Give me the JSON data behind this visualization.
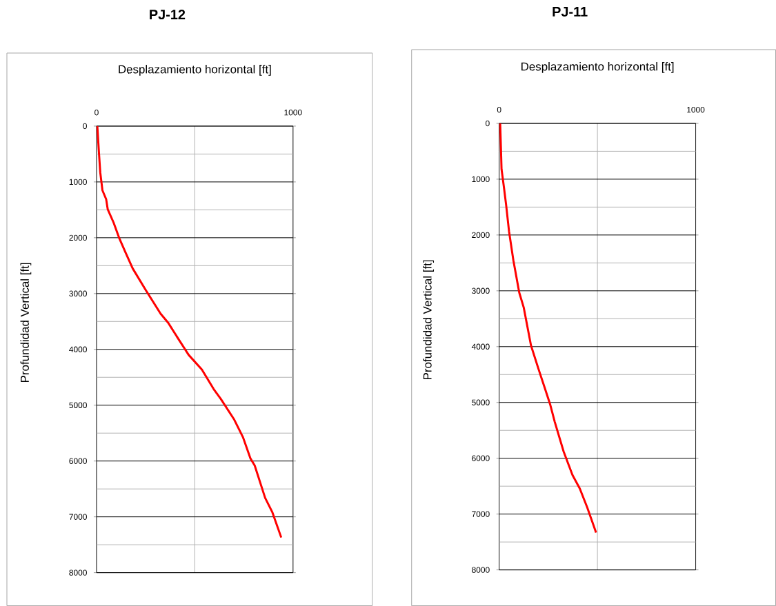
{
  "chart_data": [
    {
      "type": "line",
      "title": "PJ-12",
      "xlabel": "Desplazamiento horizontal  [ft]",
      "ylabel": "Profundidad Vertical [ft]",
      "x": [
        4,
        12,
        19,
        30,
        49,
        57,
        87,
        117,
        147,
        184,
        251,
        326,
        364,
        416,
        469,
        536,
        596,
        633,
        701,
        746,
        783,
        805,
        858,
        895,
        940
      ],
      "values": [
        0,
        460,
        830,
        1150,
        1310,
        1490,
        1730,
        2020,
        2260,
        2550,
        2940,
        3360,
        3520,
        3810,
        4100,
        4360,
        4710,
        4890,
        5260,
        5580,
        5950,
        6080,
        6660,
        6920,
        7370
      ],
      "color": "#ff0000",
      "line_style": "solid",
      "xlim": [
        0,
        1000
      ],
      "xticks": [
        0,
        {
          "value": 500,
          "label": null
        },
        1000
      ],
      "ylim": [
        8000,
        0
      ],
      "yticks": [
        0,
        {
          "value": 500,
          "label": null
        },
        1000,
        {
          "value": 1500,
          "label": null
        },
        2000,
        {
          "value": 2500,
          "label": null
        },
        3000,
        {
          "value": 3500,
          "label": null
        },
        4000,
        {
          "value": 4500,
          "label": null
        },
        5000,
        {
          "value": 5500,
          "label": null
        },
        6000,
        {
          "value": 6500,
          "label": null
        },
        7000,
        {
          "value": 7500,
          "label": null
        },
        8000
      ],
      "grid": true
    },
    {
      "type": "line",
      "title": "PJ-11",
      "xlabel": "Desplazamiento horizontal  [ft]",
      "ylabel": "Profundidad Vertical [ft]",
      "x": [
        5,
        9,
        12,
        24,
        35,
        50,
        72,
        102,
        125,
        162,
        200,
        230,
        259,
        283,
        328,
        373,
        410,
        448,
        493
      ],
      "values": [
        0,
        450,
        820,
        1140,
        1450,
        1930,
        2450,
        3030,
        3300,
        3980,
        4400,
        4720,
        5030,
        5350,
        5880,
        6300,
        6540,
        6880,
        7330
      ],
      "color": "#ff0000",
      "line_style": "solid",
      "xlim": [
        0,
        1000
      ],
      "xticks": [
        0,
        {
          "value": 500,
          "label": null
        },
        1000
      ],
      "ylim": [
        8000,
        0
      ],
      "yticks": [
        0,
        {
          "value": 500,
          "label": null
        },
        1000,
        {
          "value": 1500,
          "label": null
        },
        2000,
        {
          "value": 2500,
          "label": null
        },
        3000,
        {
          "value": 3500,
          "label": null
        },
        4000,
        {
          "value": 4500,
          "label": null
        },
        5000,
        {
          "value": 5500,
          "label": null
        },
        6000,
        {
          "value": 6500,
          "label": null
        },
        7000,
        {
          "value": 7500,
          "label": null
        },
        8000
      ],
      "grid": true
    }
  ]
}
